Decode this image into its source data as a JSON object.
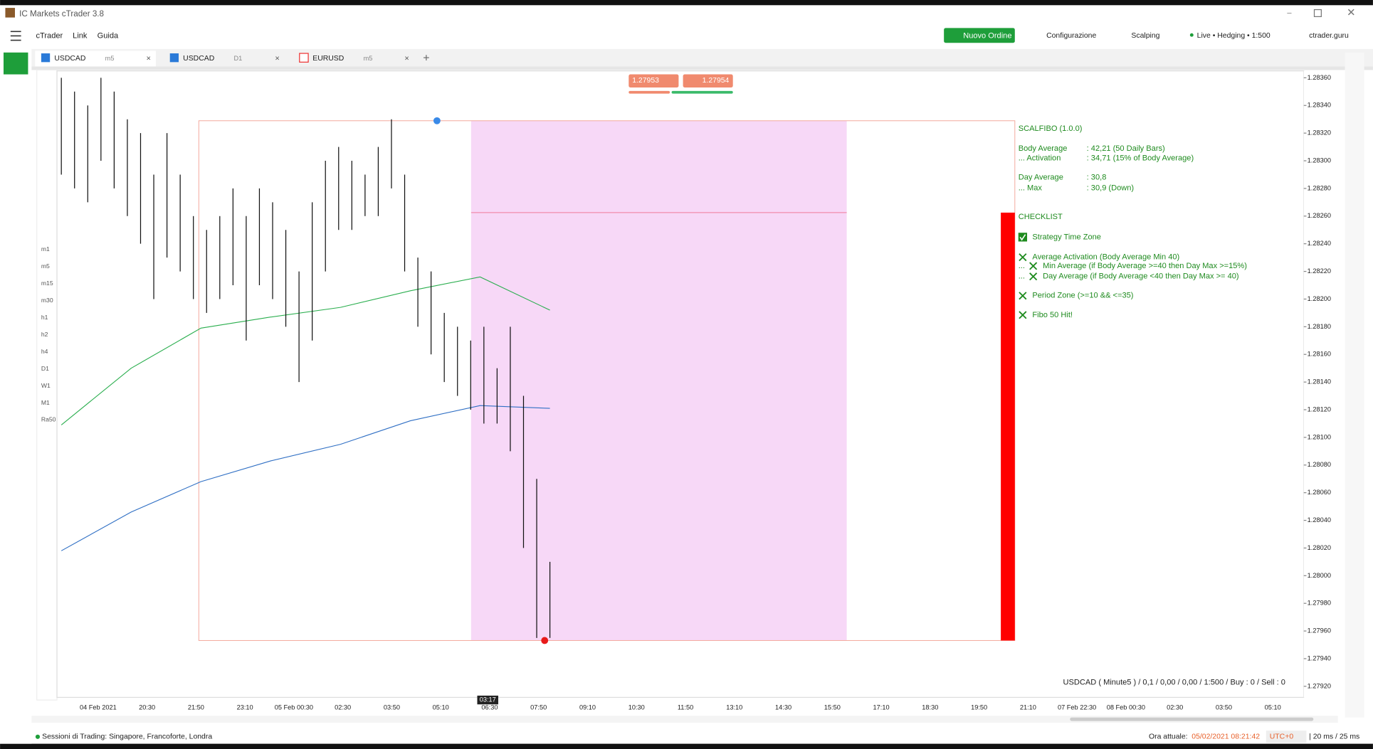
{
  "window": {
    "title": "IC Markets cTrader 3.8"
  },
  "menu": [
    "cTrader",
    "Link",
    "Guida"
  ],
  "toolbar": {
    "new_order": "Nuovo Ordine",
    "config": "Configurazione",
    "preset": "Scalping",
    "account": "Live • Hedging • 1:500",
    "user": "ctrader.guru"
  },
  "tabs": [
    {
      "symbol": "USDCAD",
      "timeframe": "m5"
    },
    {
      "symbol": "USDCAD",
      "timeframe": "D1"
    },
    {
      "symbol": "EURUSD",
      "timeframe": "m5"
    }
  ],
  "timeframes": [
    "m1",
    "m5",
    "m15",
    "m30",
    "h1",
    "h2",
    "h4",
    "D1",
    "W1",
    "M1",
    "Ra50"
  ],
  "quote": {
    "sell": "1.27953",
    "buy": "1.27954"
  },
  "chart_data": {
    "type": "candlestick",
    "high": [
      1.2836,
      1.2835,
      1.2834,
      1.2836,
      1.2835,
      1.2833,
      1.2832,
      1.2829,
      1.2832,
      1.2829,
      1.2826,
      1.2825,
      1.2826,
      1.2828,
      1.2826,
      1.2828,
      1.2827,
      1.2825,
      1.2822,
      1.2827,
      1.283,
      1.2831,
      1.283,
      1.2829,
      1.2831,
      1.2833,
      1.2829,
      1.2823,
      1.2822,
      1.2819,
      1.2818,
      1.2817,
      1.2818,
      1.2815,
      1.2818,
      1.2813,
      1.2807,
      1.2801
    ],
    "low": [
      1.2829,
      1.2828,
      1.2827,
      1.283,
      1.2828,
      1.2826,
      1.2824,
      1.282,
      1.2823,
      1.2822,
      1.282,
      1.2819,
      1.282,
      1.2821,
      1.2817,
      1.2821,
      1.282,
      1.2818,
      1.2814,
      1.2817,
      1.2822,
      1.2825,
      1.2825,
      1.2826,
      1.2826,
      1.2828,
      1.2822,
      1.2818,
      1.2816,
      1.2814,
      1.2813,
      1.2812,
      1.2811,
      1.2811,
      1.2809,
      1.2802,
      1.27955,
      1.27955
    ],
    "ma": [
      {
        "color": "#2aae4e",
        "values": [
          1.28109,
          1.2815,
          1.28179,
          1.28187,
          1.28194,
          1.28206,
          1.28216,
          1.28192
        ]
      },
      {
        "color": "#2f6fc4",
        "values": [
          1.28018,
          1.28046,
          1.28068,
          1.28083,
          1.28095,
          1.28112,
          1.28123,
          1.28121
        ]
      }
    ],
    "ylim": [
      1.27912,
      1.28365
    ],
    "yticks": [
      {
        "value": 1.2836,
        "label": "1.28360"
      },
      {
        "value": 1.2834,
        "label": "1.28340"
      },
      {
        "value": 1.2832,
        "label": "1.28320"
      },
      {
        "value": 1.283,
        "label": "1.28300"
      },
      {
        "value": 1.2828,
        "label": "1.28280"
      },
      {
        "value": 1.2826,
        "label": "1.28260"
      },
      {
        "value": 1.2824,
        "label": "1.28240"
      },
      {
        "value": 1.2822,
        "label": "1.28220"
      },
      {
        "value": 1.282,
        "label": "1.28200"
      },
      {
        "value": 1.2818,
        "label": "1.28180"
      },
      {
        "value": 1.2816,
        "label": "1.28160"
      },
      {
        "value": 1.2814,
        "label": "1.28140"
      },
      {
        "value": 1.2812,
        "label": "1.28120"
      },
      {
        "value": 1.281,
        "label": "1.28100"
      },
      {
        "value": 1.2808,
        "label": "1.28080"
      },
      {
        "value": 1.2806,
        "label": "1.28060"
      },
      {
        "value": 1.2804,
        "label": "1.28040"
      },
      {
        "value": 1.2802,
        "label": "1.28020"
      },
      {
        "value": 1.28,
        "label": "1.28000"
      },
      {
        "value": 1.2798,
        "label": "1.27980"
      },
      {
        "value": 1.2796,
        "label": "1.27960"
      },
      {
        "value": 1.2794,
        "label": "1.27940"
      },
      {
        "value": 1.2792,
        "label": "1.27920"
      }
    ],
    "xlabels": [
      "04 Feb 2021",
      "20:30",
      "21:50",
      "23:10",
      "05 Feb 00:30",
      "02:30",
      "03:50",
      "05:10",
      "06:30",
      "07:50",
      "09:10",
      "10:30",
      "11:50",
      "13:10",
      "14:30",
      "15:50",
      "17:10",
      "18:30",
      "19:50",
      "21:10",
      "07 Feb 22:30",
      "08 Feb 00:30",
      "02:30",
      "03:50",
      "05:10"
    ],
    "crosshair_time": "03:17",
    "info": "USDCAD ( Minute5 ) / 0,1 / 0,00 / 0,00 / 1:500 / Buy : 0 / Sell : 0"
  },
  "indicator": {
    "title": "SCALFIBO (1.0.0)",
    "stats": [
      [
        "Body Average",
        ": 42,21 (50 Daily Bars)"
      ],
      [
        "... Activation",
        ": 34,71 (15% of Body Average)"
      ],
      [
        "Day Average",
        ": 30,8"
      ],
      [
        "... Max",
        ": 30,9 (Down)"
      ]
    ],
    "checklist_title": "CHECKLIST",
    "items": [
      "Strategy Time Zone",
      "Average Activation (Body Average Min 40)",
      "Min Average (if Body Average >=40 then Day Max >=15%)",
      "Day Average (if Body Average <40 then Day Max >= 40)",
      "Period Zone (>=10 && <=35)",
      "Fibo 50 Hit!"
    ],
    "ellipsis": "..."
  },
  "status": {
    "sessions": "Sessioni di Trading: Singapore, Francoforte, Londra",
    "time_label": "Ora attuale:",
    "time": "05/02/2021 08:21:42",
    "tz": "UTC+0",
    "latency": "| 20 ms / 25 ms"
  }
}
